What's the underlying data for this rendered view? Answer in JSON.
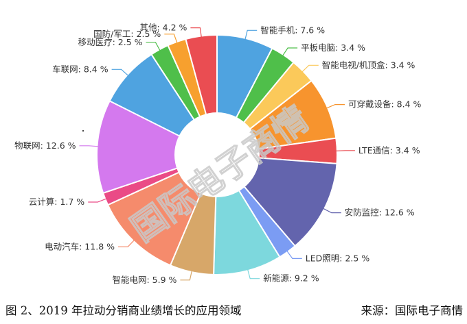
{
  "chart_data": {
    "type": "pie",
    "variant": "donut",
    "title": "",
    "unit": "%",
    "label_format": "{name}: {value} %",
    "slices": [
      {
        "name": "智能手机",
        "value": 7.6,
        "color": "#4fa3e0"
      },
      {
        "name": "平板电脑",
        "value": 3.4,
        "color": "#4fbf4a"
      },
      {
        "name": "智能电视/机顶盒",
        "value": 3.4,
        "color": "#fbc95a"
      },
      {
        "name": "可穿戴设备",
        "value": 8.4,
        "color": "#f7942e"
      },
      {
        "name": "LTE通信",
        "value": 3.4,
        "color": "#ea4d52"
      },
      {
        "name": "安防监控",
        "value": 12.6,
        "color": "#6364ad"
      },
      {
        "name": "LED照明",
        "value": 2.5,
        "color": "#7b9cf3"
      },
      {
        "name": "新能源",
        "value": 9.2,
        "color": "#7dd8dd"
      },
      {
        "name": "智能电网",
        "value": 5.9,
        "color": "#d7a769"
      },
      {
        "name": "电动汽车",
        "value": 11.8,
        "color": "#f58b6c"
      },
      {
        "name": "云计算",
        "value": 1.7,
        "color": "#ea4b86"
      },
      {
        "name": "物联网",
        "value": 12.6,
        "color": "#d479ee"
      },
      {
        "name": "车联网",
        "value": 8.4,
        "color": "#4fa3e0"
      },
      {
        "name": "移动医疗",
        "value": 2.5,
        "color": "#4fbf4a"
      },
      {
        "name": "国防/军工",
        "value": 2.5,
        "color": "#f7a02e"
      },
      {
        "name": "其他",
        "value": 4.2,
        "color": "#ea4d52"
      }
    ]
  },
  "watermark": "国际电子商情",
  "caption": {
    "figure_text": "图 2、2019 年拉动分销商业绩增长的应用领域",
    "source_text": "来源：国际电子商情"
  }
}
